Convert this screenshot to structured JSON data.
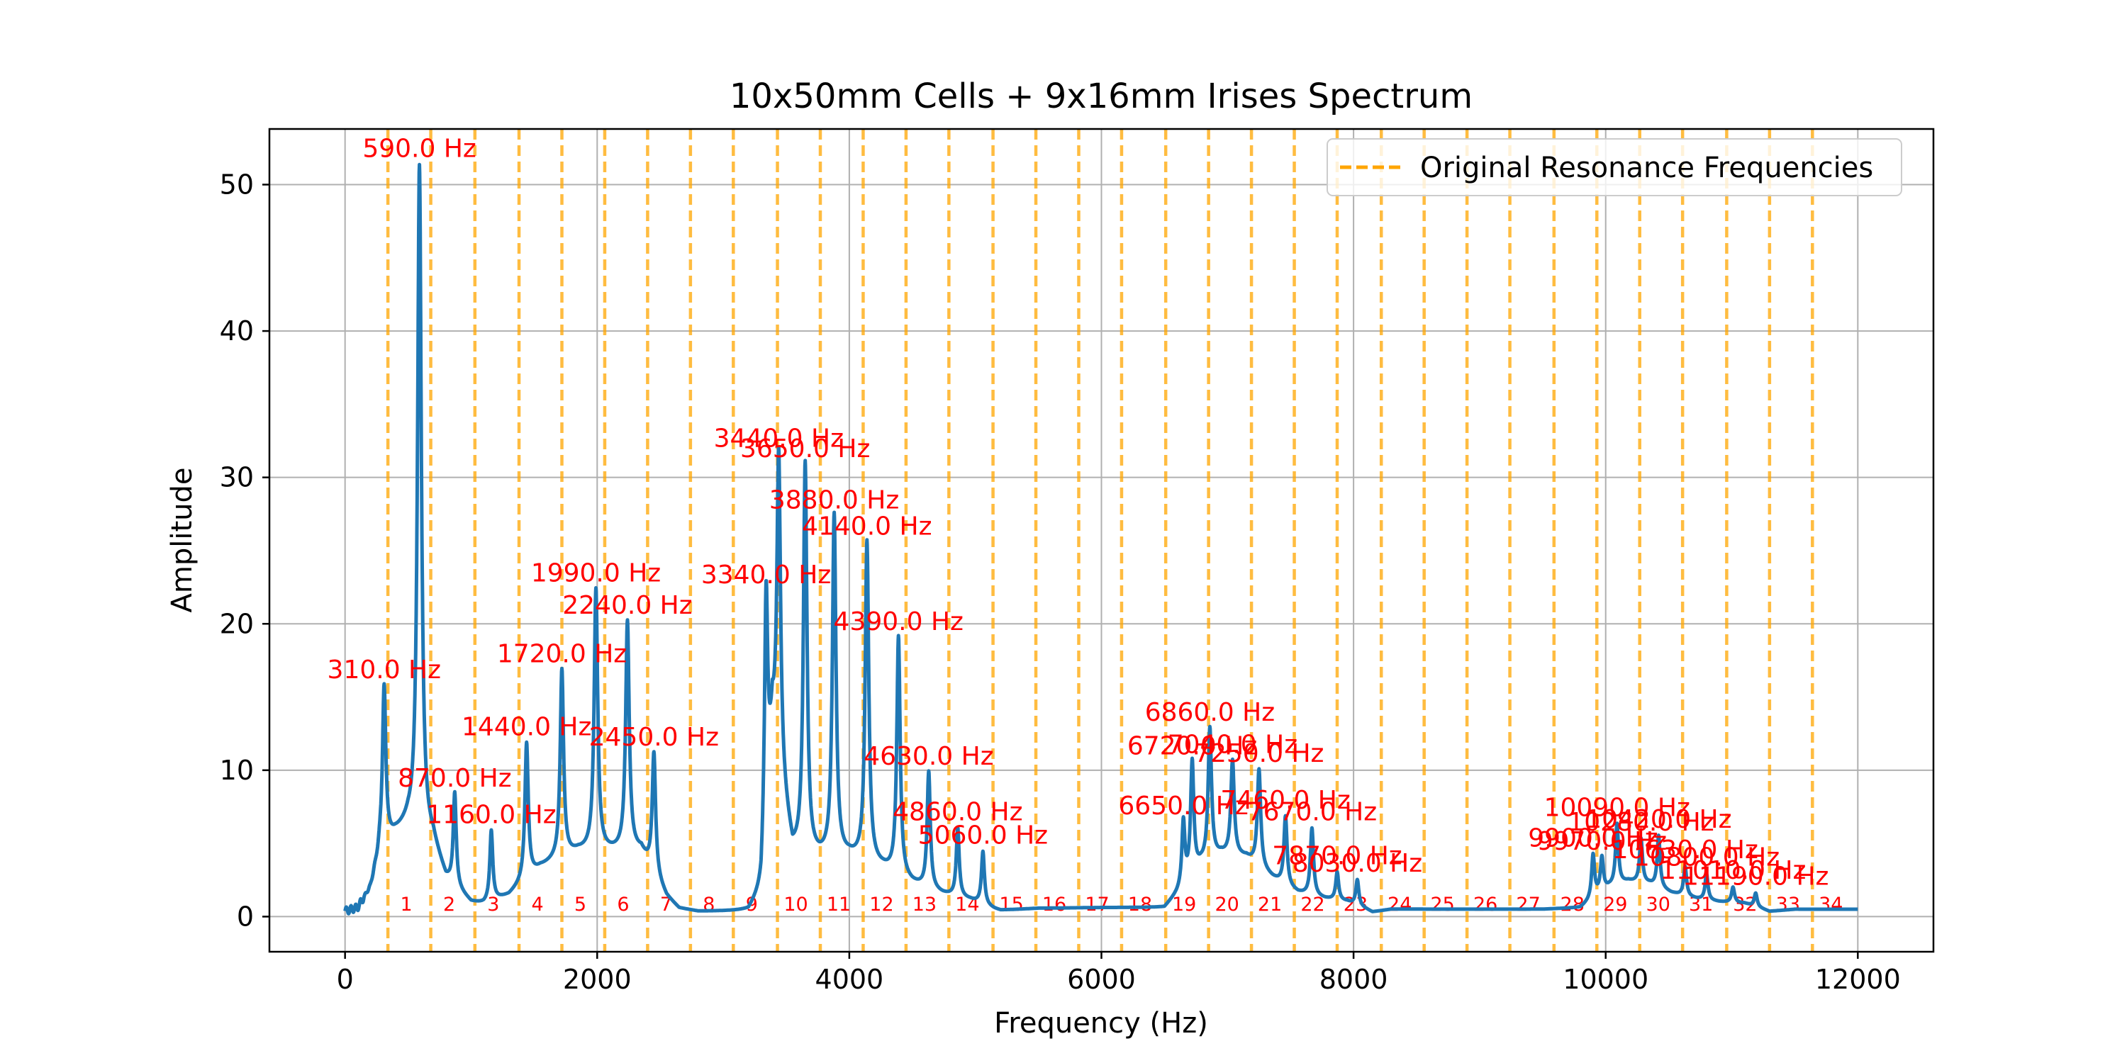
{
  "chart_data": {
    "type": "line",
    "title": "10x50mm Cells + 9x16mm Irises Spectrum",
    "xlabel": "Frequency (Hz)",
    "ylabel": "Amplitude",
    "xlim": [
      -600,
      12600
    ],
    "ylim": [
      -2.4,
      53.8
    ],
    "xticks": [
      0,
      2000,
      4000,
      6000,
      8000,
      10000,
      12000
    ],
    "yticks": [
      0,
      10,
      20,
      30,
      40,
      50
    ],
    "grid": true,
    "legend": {
      "position": "top-right",
      "entries": [
        {
          "label": "Original Resonance Frequencies",
          "style": "dashed",
          "color": "#FFA500"
        }
      ]
    },
    "colors": {
      "series": "#1f77b4",
      "annotation": "#FF0000",
      "resonance": "#FFA500"
    },
    "resonance_lines": [
      {
        "x": 340,
        "label": "1"
      },
      {
        "x": 680,
        "label": "2"
      },
      {
        "x": 1030,
        "label": "3"
      },
      {
        "x": 1380,
        "label": "4"
      },
      {
        "x": 1720,
        "label": "5"
      },
      {
        "x": 2060,
        "label": "6"
      },
      {
        "x": 2400,
        "label": "7"
      },
      {
        "x": 2740,
        "label": "8"
      },
      {
        "x": 3080,
        "label": "9"
      },
      {
        "x": 3430,
        "label": "10"
      },
      {
        "x": 3770,
        "label": "11"
      },
      {
        "x": 4110,
        "label": "12"
      },
      {
        "x": 4450,
        "label": "13"
      },
      {
        "x": 4790,
        "label": "14"
      },
      {
        "x": 5140,
        "label": "15"
      },
      {
        "x": 5480,
        "label": "16"
      },
      {
        "x": 5820,
        "label": "17"
      },
      {
        "x": 6160,
        "label": "18"
      },
      {
        "x": 6510,
        "label": "19"
      },
      {
        "x": 6850,
        "label": "20"
      },
      {
        "x": 7190,
        "label": "21"
      },
      {
        "x": 7530,
        "label": "22"
      },
      {
        "x": 7870,
        "label": "23"
      },
      {
        "x": 8220,
        "label": "24"
      },
      {
        "x": 8560,
        "label": "25"
      },
      {
        "x": 8900,
        "label": "26"
      },
      {
        "x": 9240,
        "label": "27"
      },
      {
        "x": 9590,
        "label": "28"
      },
      {
        "x": 9930,
        "label": "29"
      },
      {
        "x": 10270,
        "label": "30"
      },
      {
        "x": 10610,
        "label": "31"
      },
      {
        "x": 10960,
        "label": "32"
      },
      {
        "x": 11300,
        "label": "33"
      },
      {
        "x": 11640,
        "label": "34"
      }
    ],
    "peak_labels": [
      {
        "x": 310,
        "y": 15.7,
        "label": "310.0 Hz"
      },
      {
        "x": 590,
        "y": 51.3,
        "label": "590.0 Hz"
      },
      {
        "x": 870,
        "y": 8.3,
        "label": "870.0 Hz"
      },
      {
        "x": 1160,
        "y": 5.8,
        "label": "1160.0 Hz"
      },
      {
        "x": 1440,
        "y": 11.8,
        "label": "1440.0 Hz"
      },
      {
        "x": 1720,
        "y": 16.8,
        "label": "1720.0 Hz"
      },
      {
        "x": 1990,
        "y": 22.3,
        "label": "1990.0 Hz"
      },
      {
        "x": 2240,
        "y": 20.1,
        "label": "2240.0 Hz"
      },
      {
        "x": 2450,
        "y": 11.1,
        "label": "2450.0 Hz"
      },
      {
        "x": 3340,
        "y": 22.2,
        "label": "3340.0 Hz"
      },
      {
        "x": 3440,
        "y": 31.5,
        "label": "3440.0 Hz"
      },
      {
        "x": 3650,
        "y": 30.8,
        "label": "3650.0 Hz"
      },
      {
        "x": 3880,
        "y": 27.3,
        "label": "3880.0 Hz"
      },
      {
        "x": 4140,
        "y": 25.5,
        "label": "4140.0 Hz"
      },
      {
        "x": 4390,
        "y": 19.0,
        "label": "4390.0 Hz"
      },
      {
        "x": 4630,
        "y": 9.8,
        "label": "4630.0 Hz"
      },
      {
        "x": 4860,
        "y": 6.0,
        "label": "4860.0 Hz"
      },
      {
        "x": 5060,
        "y": 4.4,
        "label": "5060.0 Hz"
      },
      {
        "x": 6650,
        "y": 6.4,
        "label": "6650.0 Hz"
      },
      {
        "x": 6720,
        "y": 10.5,
        "label": "6720.0 Hz"
      },
      {
        "x": 6860,
        "y": 12.8,
        "label": "6860.0 Hz"
      },
      {
        "x": 7040,
        "y": 10.6,
        "label": "7040.0 Hz"
      },
      {
        "x": 7250,
        "y": 10.0,
        "label": "7250.0 Hz"
      },
      {
        "x": 7460,
        "y": 6.8,
        "label": "7460.0 Hz"
      },
      {
        "x": 7670,
        "y": 6.0,
        "label": "7670.0 Hz"
      },
      {
        "x": 7870,
        "y": 3.0,
        "label": "7870.0 Hz"
      },
      {
        "x": 8030,
        "y": 2.5,
        "label": "8030.0 Hz"
      },
      {
        "x": 9900,
        "y": 4.2,
        "label": "9900.0 Hz"
      },
      {
        "x": 9970,
        "y": 4.0,
        "label": "9970.0 Hz"
      },
      {
        "x": 10090,
        "y": 6.3,
        "label": "10090.0 Hz"
      },
      {
        "x": 10280,
        "y": 5.3,
        "label": "10280.0 Hz"
      },
      {
        "x": 10420,
        "y": 5.5,
        "label": "10420.0 Hz"
      },
      {
        "x": 10630,
        "y": 3.4,
        "label": "10630.0 Hz"
      },
      {
        "x": 10800,
        "y": 2.9,
        "label": "10800.0 Hz"
      },
      {
        "x": 11010,
        "y": 2.0,
        "label": "11010.0 Hz"
      },
      {
        "x": 11190,
        "y": 1.6,
        "label": "11190.0 Hz"
      }
    ],
    "series": [
      {
        "peaks": [
          [
            310,
            15.7,
            16
          ],
          [
            590,
            51.3,
            18
          ],
          [
            870,
            8.3,
            14
          ],
          [
            1160,
            5.8,
            14
          ],
          [
            1440,
            11.8,
            16
          ],
          [
            1720,
            16.8,
            16
          ],
          [
            1990,
            22.3,
            17
          ],
          [
            2240,
            20.1,
            17
          ],
          [
            2450,
            11.1,
            16
          ],
          [
            3340,
            22.2,
            15
          ],
          [
            3440,
            31.5,
            17
          ],
          [
            3650,
            30.8,
            17
          ],
          [
            3880,
            27.3,
            17
          ],
          [
            4140,
            25.5,
            17
          ],
          [
            4390,
            19.0,
            16
          ],
          [
            4630,
            9.8,
            15
          ],
          [
            4860,
            6.0,
            14
          ],
          [
            5060,
            4.4,
            14
          ],
          [
            6650,
            6.4,
            14
          ],
          [
            6720,
            10.5,
            15
          ],
          [
            6860,
            12.8,
            16
          ],
          [
            7040,
            10.6,
            16
          ],
          [
            7250,
            10.0,
            16
          ],
          [
            7460,
            6.8,
            15
          ],
          [
            7670,
            6.0,
            15
          ],
          [
            7870,
            3.0,
            14
          ],
          [
            8030,
            2.5,
            14
          ],
          [
            9900,
            4.2,
            14
          ],
          [
            9970,
            4.0,
            14
          ],
          [
            10090,
            6.3,
            14
          ],
          [
            10280,
            5.3,
            14
          ],
          [
            10420,
            5.5,
            14
          ],
          [
            10630,
            3.4,
            14
          ],
          [
            10800,
            2.9,
            14
          ],
          [
            11010,
            2.0,
            14
          ],
          [
            11190,
            1.6,
            14
          ]
        ],
        "baseline": [
          [
            0,
            0.3
          ],
          [
            100,
            0.5
          ],
          [
            200,
            1.8
          ],
          [
            280,
            4.5
          ],
          [
            400,
            5.6
          ],
          [
            500,
            6.2
          ],
          [
            700,
            5.0
          ],
          [
            800,
            2.5
          ],
          [
            1000,
            0.9
          ],
          [
            1100,
            0.8
          ],
          [
            1300,
            1.4
          ],
          [
            1400,
            2.2
          ],
          [
            1550,
            3.3
          ],
          [
            1650,
            3.7
          ],
          [
            1850,
            4.4
          ],
          [
            2100,
            4.4
          ],
          [
            2350,
            4.4
          ],
          [
            2550,
            1.3
          ],
          [
            2650,
            0.5
          ],
          [
            2800,
            0.3
          ],
          [
            3000,
            0.3
          ],
          [
            3200,
            0.3
          ],
          [
            3300,
            1.5
          ],
          [
            3390,
            12.5
          ],
          [
            3550,
            4.2
          ],
          [
            3760,
            3.9
          ],
          [
            4000,
            4.0
          ],
          [
            4270,
            3.2
          ],
          [
            4500,
            2.2
          ],
          [
            4740,
            1.5
          ],
          [
            4960,
            1.1
          ],
          [
            5150,
            0.5
          ],
          [
            5200,
            0.4
          ],
          [
            5500,
            0.55
          ],
          [
            6000,
            0.6
          ],
          [
            6500,
            0.6
          ],
          [
            6600,
            1.5
          ],
          [
            6790,
            3.5
          ],
          [
            6950,
            4.2
          ],
          [
            7150,
            4.0
          ],
          [
            7360,
            2.6
          ],
          [
            7560,
            1.6
          ],
          [
            7770,
            1.2
          ],
          [
            7950,
            1.0
          ],
          [
            8100,
            0.5
          ],
          [
            8150,
            0.3
          ],
          [
            8300,
            0.5
          ],
          [
            9500,
            0.5
          ],
          [
            9800,
            0.6
          ],
          [
            9940,
            1.5
          ],
          [
            10030,
            2.0
          ],
          [
            10180,
            2.4
          ],
          [
            10350,
            2.2
          ],
          [
            10520,
            1.6
          ],
          [
            10720,
            1.2
          ],
          [
            10900,
            1.0
          ],
          [
            11100,
            0.9
          ],
          [
            11250,
            0.5
          ],
          [
            11300,
            0.35
          ],
          [
            11500,
            0.5
          ],
          [
            12000,
            0.5
          ]
        ]
      }
    ]
  }
}
